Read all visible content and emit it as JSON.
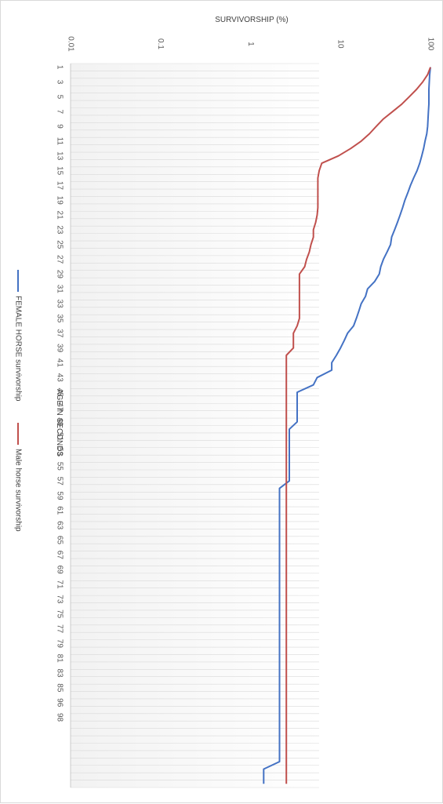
{
  "chart_data": {
    "type": "line",
    "title": "",
    "y_axis_title": "SURVIVORSHIP (%)",
    "x_axis_title": "AGE IN SECONDS",
    "y_scale": "log",
    "y_ticks": [
      "0.01",
      "0.1",
      "1",
      "10",
      "100"
    ],
    "y_range": [
      0.01,
      100
    ],
    "x_tick_labels": [
      "1",
      "3",
      "5",
      "7",
      "9",
      "11",
      "13",
      "15",
      "17",
      "19",
      "21",
      "23",
      "25",
      "27",
      "29",
      "31",
      "33",
      "35",
      "37",
      "39",
      "41",
      "43",
      "45",
      "47",
      "49",
      "51",
      "53",
      "55",
      "57",
      "59",
      "61",
      "63",
      "65",
      "67",
      "69",
      "71",
      "73",
      "75",
      "77",
      "79",
      "81",
      "83",
      "85",
      "96",
      "98"
    ],
    "x_count": 98,
    "grid": true,
    "legend_position": "bottom",
    "series": [
      {
        "name": "FEMALE HORSE survivorship",
        "color": "#4472C4",
        "points": [
          [
            1,
            100
          ],
          [
            2,
            98
          ],
          [
            3,
            97
          ],
          [
            4,
            96
          ],
          [
            5,
            96
          ],
          [
            6,
            96
          ],
          [
            7,
            95
          ],
          [
            8,
            94
          ],
          [
            9,
            93
          ],
          [
            10,
            91
          ],
          [
            11,
            87
          ],
          [
            12,
            84
          ],
          [
            13,
            80
          ],
          [
            14,
            76
          ],
          [
            15,
            71
          ],
          [
            16,
            65
          ],
          [
            17,
            60
          ],
          [
            18,
            56
          ],
          [
            19,
            52
          ],
          [
            20,
            49
          ],
          [
            21,
            46
          ],
          [
            22,
            43
          ],
          [
            23,
            40
          ],
          [
            24,
            37
          ],
          [
            25,
            36
          ],
          [
            26,
            33
          ],
          [
            27,
            30
          ],
          [
            28,
            28
          ],
          [
            29,
            27
          ],
          [
            30,
            24
          ],
          [
            31,
            20
          ],
          [
            32,
            19
          ],
          [
            33,
            17
          ],
          [
            34,
            16
          ],
          [
            35,
            15
          ],
          [
            36,
            14
          ],
          [
            37,
            12
          ],
          [
            38,
            11
          ],
          [
            39,
            10
          ],
          [
            40,
            9
          ],
          [
            41,
            8
          ],
          [
            42,
            8
          ],
          [
            43,
            5.5
          ],
          [
            44,
            5
          ],
          [
            45,
            3.3
          ],
          [
            46,
            3.3
          ],
          [
            47,
            3.3
          ],
          [
            48,
            3.3
          ],
          [
            49,
            3.3
          ],
          [
            50,
            2.7
          ],
          [
            51,
            2.7
          ],
          [
            52,
            2.7
          ],
          [
            53,
            2.7
          ],
          [
            54,
            2.7
          ],
          [
            55,
            2.7
          ],
          [
            56,
            2.7
          ],
          [
            57,
            2.7
          ],
          [
            58,
            2.1
          ],
          [
            59,
            2.1
          ],
          [
            60,
            2.1
          ],
          [
            61,
            2.1
          ],
          [
            62,
            2.1
          ],
          [
            63,
            2.1
          ],
          [
            64,
            2.1
          ],
          [
            65,
            2.1
          ],
          [
            66,
            2.1
          ],
          [
            67,
            2.1
          ],
          [
            68,
            2.1
          ],
          [
            69,
            2.1
          ],
          [
            70,
            2.1
          ],
          [
            71,
            2.1
          ],
          [
            72,
            2.1
          ],
          [
            73,
            2.1
          ],
          [
            74,
            2.1
          ],
          [
            75,
            2.1
          ],
          [
            76,
            2.1
          ],
          [
            77,
            2.1
          ],
          [
            78,
            2.1
          ],
          [
            79,
            2.1
          ],
          [
            80,
            2.1
          ],
          [
            81,
            2.1
          ],
          [
            82,
            2.1
          ],
          [
            83,
            2.1
          ],
          [
            84,
            2.1
          ],
          [
            85,
            2.1
          ],
          [
            86,
            2.1
          ],
          [
            87,
            2.1
          ],
          [
            88,
            2.1
          ],
          [
            89,
            2.1
          ],
          [
            90,
            2.1
          ],
          [
            91,
            2.1
          ],
          [
            92,
            2.1
          ],
          [
            93,
            2.1
          ],
          [
            94,
            2.1
          ],
          [
            95,
            2.1
          ],
          [
            96,
            1.4
          ],
          [
            97,
            1.4
          ],
          [
            98,
            1.4
          ]
        ]
      },
      {
        "name": "Male horse survivorship",
        "color": "#C0504D",
        "points": [
          [
            1,
            100
          ],
          [
            2,
            93
          ],
          [
            3,
            82
          ],
          [
            4,
            70
          ],
          [
            5,
            58
          ],
          [
            6,
            48
          ],
          [
            7,
            38
          ],
          [
            8,
            30
          ],
          [
            9,
            25
          ],
          [
            10,
            21
          ],
          [
            11,
            17
          ],
          [
            12,
            13
          ],
          [
            13,
            9.5
          ],
          [
            14,
            6.2
          ],
          [
            15,
            5.8
          ],
          [
            16,
            5.6
          ],
          [
            17,
            5.6
          ],
          [
            18,
            5.6
          ],
          [
            19,
            5.6
          ],
          [
            20,
            5.6
          ],
          [
            21,
            5.5
          ],
          [
            22,
            5.3
          ],
          [
            23,
            5.0
          ],
          [
            24,
            5.0
          ],
          [
            25,
            4.7
          ],
          [
            26,
            4.5
          ],
          [
            27,
            4.2
          ],
          [
            28,
            4.0
          ],
          [
            29,
            3.5
          ],
          [
            30,
            3.5
          ],
          [
            31,
            3.5
          ],
          [
            32,
            3.5
          ],
          [
            33,
            3.5
          ],
          [
            34,
            3.5
          ],
          [
            35,
            3.5
          ],
          [
            36,
            3.3
          ],
          [
            37,
            3.0
          ],
          [
            38,
            3.0
          ],
          [
            39,
            3.0
          ],
          [
            40,
            2.5
          ],
          [
            41,
            2.5
          ],
          [
            42,
            2.5
          ],
          [
            43,
            2.5
          ],
          [
            44,
            2.5
          ],
          [
            45,
            2.5
          ],
          [
            46,
            2.5
          ],
          [
            47,
            2.5
          ],
          [
            48,
            2.5
          ],
          [
            49,
            2.5
          ],
          [
            50,
            2.5
          ],
          [
            51,
            2.5
          ],
          [
            52,
            2.5
          ],
          [
            53,
            2.5
          ],
          [
            54,
            2.5
          ],
          [
            55,
            2.5
          ],
          [
            56,
            2.5
          ],
          [
            57,
            2.5
          ],
          [
            58,
            2.5
          ],
          [
            59,
            2.5
          ],
          [
            60,
            2.5
          ],
          [
            61,
            2.5
          ],
          [
            62,
            2.5
          ],
          [
            63,
            2.5
          ],
          [
            64,
            2.5
          ],
          [
            65,
            2.5
          ],
          [
            66,
            2.5
          ],
          [
            67,
            2.5
          ],
          [
            68,
            2.5
          ],
          [
            69,
            2.5
          ],
          [
            70,
            2.5
          ],
          [
            71,
            2.5
          ],
          [
            72,
            2.5
          ],
          [
            73,
            2.5
          ],
          [
            74,
            2.5
          ],
          [
            75,
            2.5
          ],
          [
            76,
            2.5
          ],
          [
            77,
            2.5
          ],
          [
            78,
            2.5
          ],
          [
            79,
            2.5
          ],
          [
            80,
            2.5
          ],
          [
            81,
            2.5
          ],
          [
            82,
            2.5
          ],
          [
            83,
            2.5
          ],
          [
            84,
            2.5
          ],
          [
            85,
            2.5
          ],
          [
            86,
            2.5
          ],
          [
            87,
            2.5
          ],
          [
            88,
            2.5
          ],
          [
            89,
            2.5
          ],
          [
            90,
            2.5
          ],
          [
            91,
            2.5
          ],
          [
            92,
            2.5
          ],
          [
            93,
            2.5
          ],
          [
            94,
            2.5
          ],
          [
            95,
            2.5
          ],
          [
            96,
            2.5
          ],
          [
            97,
            2.5
          ],
          [
            98,
            2.5
          ]
        ]
      }
    ]
  }
}
